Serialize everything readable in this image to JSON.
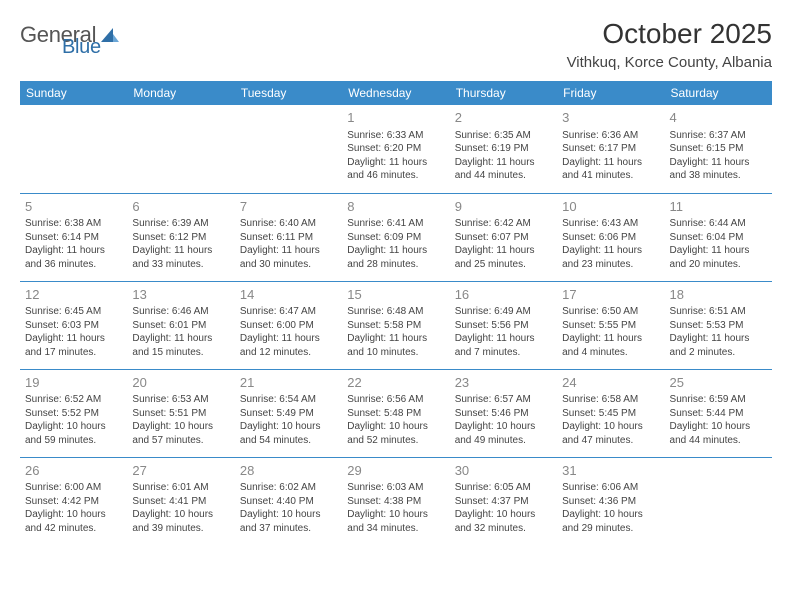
{
  "logo": {
    "text1": "General",
    "text2": "Blue"
  },
  "title": "October 2025",
  "location": "Vithkuq, Korce County, Albania",
  "colors": {
    "header_bg": "#3a8bc9",
    "header_text": "#ffffff",
    "border": "#3a8bc9",
    "daynum": "#888888",
    "body_text": "#444444",
    "logo_gray": "#555555",
    "logo_blue": "#2f6fa7"
  },
  "weekdays": [
    "Sunday",
    "Monday",
    "Tuesday",
    "Wednesday",
    "Thursday",
    "Friday",
    "Saturday"
  ],
  "weeks": [
    [
      {
        "blank": true
      },
      {
        "blank": true
      },
      {
        "blank": true
      },
      {
        "day": "1",
        "sunrise": "Sunrise: 6:33 AM",
        "sunset": "Sunset: 6:20 PM",
        "daylight": "Daylight: 11 hours and 46 minutes."
      },
      {
        "day": "2",
        "sunrise": "Sunrise: 6:35 AM",
        "sunset": "Sunset: 6:19 PM",
        "daylight": "Daylight: 11 hours and 44 minutes."
      },
      {
        "day": "3",
        "sunrise": "Sunrise: 6:36 AM",
        "sunset": "Sunset: 6:17 PM",
        "daylight": "Daylight: 11 hours and 41 minutes."
      },
      {
        "day": "4",
        "sunrise": "Sunrise: 6:37 AM",
        "sunset": "Sunset: 6:15 PM",
        "daylight": "Daylight: 11 hours and 38 minutes."
      }
    ],
    [
      {
        "day": "5",
        "sunrise": "Sunrise: 6:38 AM",
        "sunset": "Sunset: 6:14 PM",
        "daylight": "Daylight: 11 hours and 36 minutes."
      },
      {
        "day": "6",
        "sunrise": "Sunrise: 6:39 AM",
        "sunset": "Sunset: 6:12 PM",
        "daylight": "Daylight: 11 hours and 33 minutes."
      },
      {
        "day": "7",
        "sunrise": "Sunrise: 6:40 AM",
        "sunset": "Sunset: 6:11 PM",
        "daylight": "Daylight: 11 hours and 30 minutes."
      },
      {
        "day": "8",
        "sunrise": "Sunrise: 6:41 AM",
        "sunset": "Sunset: 6:09 PM",
        "daylight": "Daylight: 11 hours and 28 minutes."
      },
      {
        "day": "9",
        "sunrise": "Sunrise: 6:42 AM",
        "sunset": "Sunset: 6:07 PM",
        "daylight": "Daylight: 11 hours and 25 minutes."
      },
      {
        "day": "10",
        "sunrise": "Sunrise: 6:43 AM",
        "sunset": "Sunset: 6:06 PM",
        "daylight": "Daylight: 11 hours and 23 minutes."
      },
      {
        "day": "11",
        "sunrise": "Sunrise: 6:44 AM",
        "sunset": "Sunset: 6:04 PM",
        "daylight": "Daylight: 11 hours and 20 minutes."
      }
    ],
    [
      {
        "day": "12",
        "sunrise": "Sunrise: 6:45 AM",
        "sunset": "Sunset: 6:03 PM",
        "daylight": "Daylight: 11 hours and 17 minutes."
      },
      {
        "day": "13",
        "sunrise": "Sunrise: 6:46 AM",
        "sunset": "Sunset: 6:01 PM",
        "daylight": "Daylight: 11 hours and 15 minutes."
      },
      {
        "day": "14",
        "sunrise": "Sunrise: 6:47 AM",
        "sunset": "Sunset: 6:00 PM",
        "daylight": "Daylight: 11 hours and 12 minutes."
      },
      {
        "day": "15",
        "sunrise": "Sunrise: 6:48 AM",
        "sunset": "Sunset: 5:58 PM",
        "daylight": "Daylight: 11 hours and 10 minutes."
      },
      {
        "day": "16",
        "sunrise": "Sunrise: 6:49 AM",
        "sunset": "Sunset: 5:56 PM",
        "daylight": "Daylight: 11 hours and 7 minutes."
      },
      {
        "day": "17",
        "sunrise": "Sunrise: 6:50 AM",
        "sunset": "Sunset: 5:55 PM",
        "daylight": "Daylight: 11 hours and 4 minutes."
      },
      {
        "day": "18",
        "sunrise": "Sunrise: 6:51 AM",
        "sunset": "Sunset: 5:53 PM",
        "daylight": "Daylight: 11 hours and 2 minutes."
      }
    ],
    [
      {
        "day": "19",
        "sunrise": "Sunrise: 6:52 AM",
        "sunset": "Sunset: 5:52 PM",
        "daylight": "Daylight: 10 hours and 59 minutes."
      },
      {
        "day": "20",
        "sunrise": "Sunrise: 6:53 AM",
        "sunset": "Sunset: 5:51 PM",
        "daylight": "Daylight: 10 hours and 57 minutes."
      },
      {
        "day": "21",
        "sunrise": "Sunrise: 6:54 AM",
        "sunset": "Sunset: 5:49 PM",
        "daylight": "Daylight: 10 hours and 54 minutes."
      },
      {
        "day": "22",
        "sunrise": "Sunrise: 6:56 AM",
        "sunset": "Sunset: 5:48 PM",
        "daylight": "Daylight: 10 hours and 52 minutes."
      },
      {
        "day": "23",
        "sunrise": "Sunrise: 6:57 AM",
        "sunset": "Sunset: 5:46 PM",
        "daylight": "Daylight: 10 hours and 49 minutes."
      },
      {
        "day": "24",
        "sunrise": "Sunrise: 6:58 AM",
        "sunset": "Sunset: 5:45 PM",
        "daylight": "Daylight: 10 hours and 47 minutes."
      },
      {
        "day": "25",
        "sunrise": "Sunrise: 6:59 AM",
        "sunset": "Sunset: 5:44 PM",
        "daylight": "Daylight: 10 hours and 44 minutes."
      }
    ],
    [
      {
        "day": "26",
        "sunrise": "Sunrise: 6:00 AM",
        "sunset": "Sunset: 4:42 PM",
        "daylight": "Daylight: 10 hours and 42 minutes."
      },
      {
        "day": "27",
        "sunrise": "Sunrise: 6:01 AM",
        "sunset": "Sunset: 4:41 PM",
        "daylight": "Daylight: 10 hours and 39 minutes."
      },
      {
        "day": "28",
        "sunrise": "Sunrise: 6:02 AM",
        "sunset": "Sunset: 4:40 PM",
        "daylight": "Daylight: 10 hours and 37 minutes."
      },
      {
        "day": "29",
        "sunrise": "Sunrise: 6:03 AM",
        "sunset": "Sunset: 4:38 PM",
        "daylight": "Daylight: 10 hours and 34 minutes."
      },
      {
        "day": "30",
        "sunrise": "Sunrise: 6:05 AM",
        "sunset": "Sunset: 4:37 PM",
        "daylight": "Daylight: 10 hours and 32 minutes."
      },
      {
        "day": "31",
        "sunrise": "Sunrise: 6:06 AM",
        "sunset": "Sunset: 4:36 PM",
        "daylight": "Daylight: 10 hours and 29 minutes."
      },
      {
        "blank": true
      }
    ]
  ]
}
